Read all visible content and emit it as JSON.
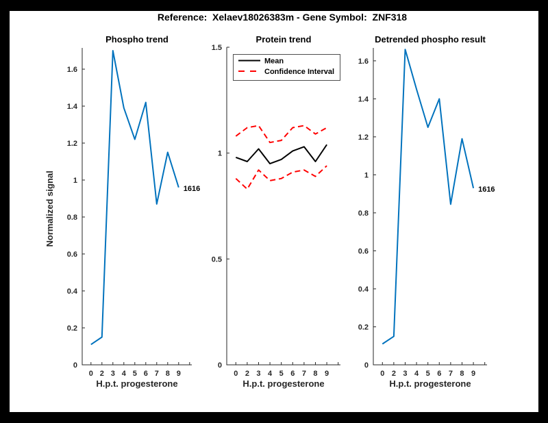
{
  "title": "Reference:  Xelaev18026383m - Gene Symbol:  ZNF318",
  "colors": {
    "frame": "#000000",
    "background": "#ffffff",
    "axis": "#262626",
    "blue": "#0072BD",
    "red": "#ff0000",
    "black": "#000000"
  },
  "chart_data": [
    {
      "type": "line",
      "title": "Phospho trend",
      "xlabel": "H.p.t. progesterone",
      "ylabel": "Normalized signal",
      "x_tick_labels": [
        "0",
        "2",
        "3",
        "4",
        "5",
        "6",
        "7",
        "8",
        "9"
      ],
      "x_values": [
        0,
        2,
        3,
        4,
        5,
        6,
        7,
        8,
        9
      ],
      "y_tick_labels": [
        "0",
        "0.2",
        "0.4",
        "0.6",
        "0.8",
        "1",
        "1.2",
        "1.4",
        "1.6"
      ],
      "y_tick_values": [
        0,
        0.2,
        0.4,
        0.6,
        0.8,
        1,
        1.2,
        1.4,
        1.6
      ],
      "ylim": [
        0,
        1.715
      ],
      "grid": false,
      "series": [
        {
          "name": "Phospho signal",
          "color": "#0072BD",
          "style": "solid",
          "values": [
            0.11,
            0.15,
            1.7,
            1.39,
            1.22,
            1.42,
            0.87,
            1.15,
            0.96
          ],
          "end_label": "1616"
        }
      ]
    },
    {
      "type": "line",
      "title": "Protein trend",
      "xlabel": "H.p.t. progesterone",
      "ylabel": "",
      "x_tick_labels": [
        "0",
        "2",
        "3",
        "4",
        "5",
        "6",
        "7",
        "8",
        "9"
      ],
      "x_values": [
        0,
        2,
        3,
        4,
        5,
        6,
        7,
        8,
        9
      ],
      "y_tick_labels": [
        "0",
        "0.5",
        "1",
        "1.5"
      ],
      "y_tick_values": [
        0,
        0.5,
        1,
        1.5
      ],
      "ylim": [
        0,
        1.5
      ],
      "grid": false,
      "legend_position": "top-left-inside",
      "legend": {
        "items": [
          {
            "label": "Mean",
            "color": "#000000",
            "style": "solid"
          },
          {
            "label": "Confidence Interval",
            "color": "#ff0000",
            "style": "dashed"
          }
        ]
      },
      "series": [
        {
          "name": "Mean",
          "color": "#000000",
          "style": "solid",
          "values": [
            0.98,
            0.96,
            1.02,
            0.95,
            0.97,
            1.01,
            1.03,
            0.96,
            1.04
          ]
        },
        {
          "name": "Confidence Interval upper",
          "color": "#ff0000",
          "style": "dashed",
          "values": [
            1.08,
            1.12,
            1.13,
            1.05,
            1.06,
            1.12,
            1.13,
            1.09,
            1.12
          ]
        },
        {
          "name": "Confidence Interval lower",
          "color": "#ff0000",
          "style": "dashed",
          "values": [
            0.88,
            0.83,
            0.92,
            0.87,
            0.88,
            0.91,
            0.92,
            0.89,
            0.94
          ]
        }
      ]
    },
    {
      "type": "line",
      "title": "Detrended phospho result",
      "xlabel": "H.p.t. progesterone",
      "ylabel": "",
      "x_tick_labels": [
        "0",
        "2",
        "3",
        "4",
        "5",
        "6",
        "7",
        "8",
        "9"
      ],
      "x_values": [
        0,
        2,
        3,
        4,
        5,
        6,
        7,
        8,
        9
      ],
      "y_tick_labels": [
        "0",
        "0.2",
        "0.4",
        "0.6",
        "0.8",
        "1",
        "1.2",
        "1.4",
        "1.6"
      ],
      "y_tick_values": [
        0,
        0.2,
        0.4,
        0.6,
        0.8,
        1,
        1.2,
        1.4,
        1.6
      ],
      "ylim": [
        0,
        1.668
      ],
      "grid": false,
      "series": [
        {
          "name": "Detrended phospho signal",
          "color": "#0072BD",
          "style": "solid",
          "values": [
            0.11,
            0.15,
            1.66,
            1.45,
            1.25,
            1.4,
            0.845,
            1.19,
            0.93
          ],
          "end_label": "1616"
        }
      ]
    }
  ]
}
